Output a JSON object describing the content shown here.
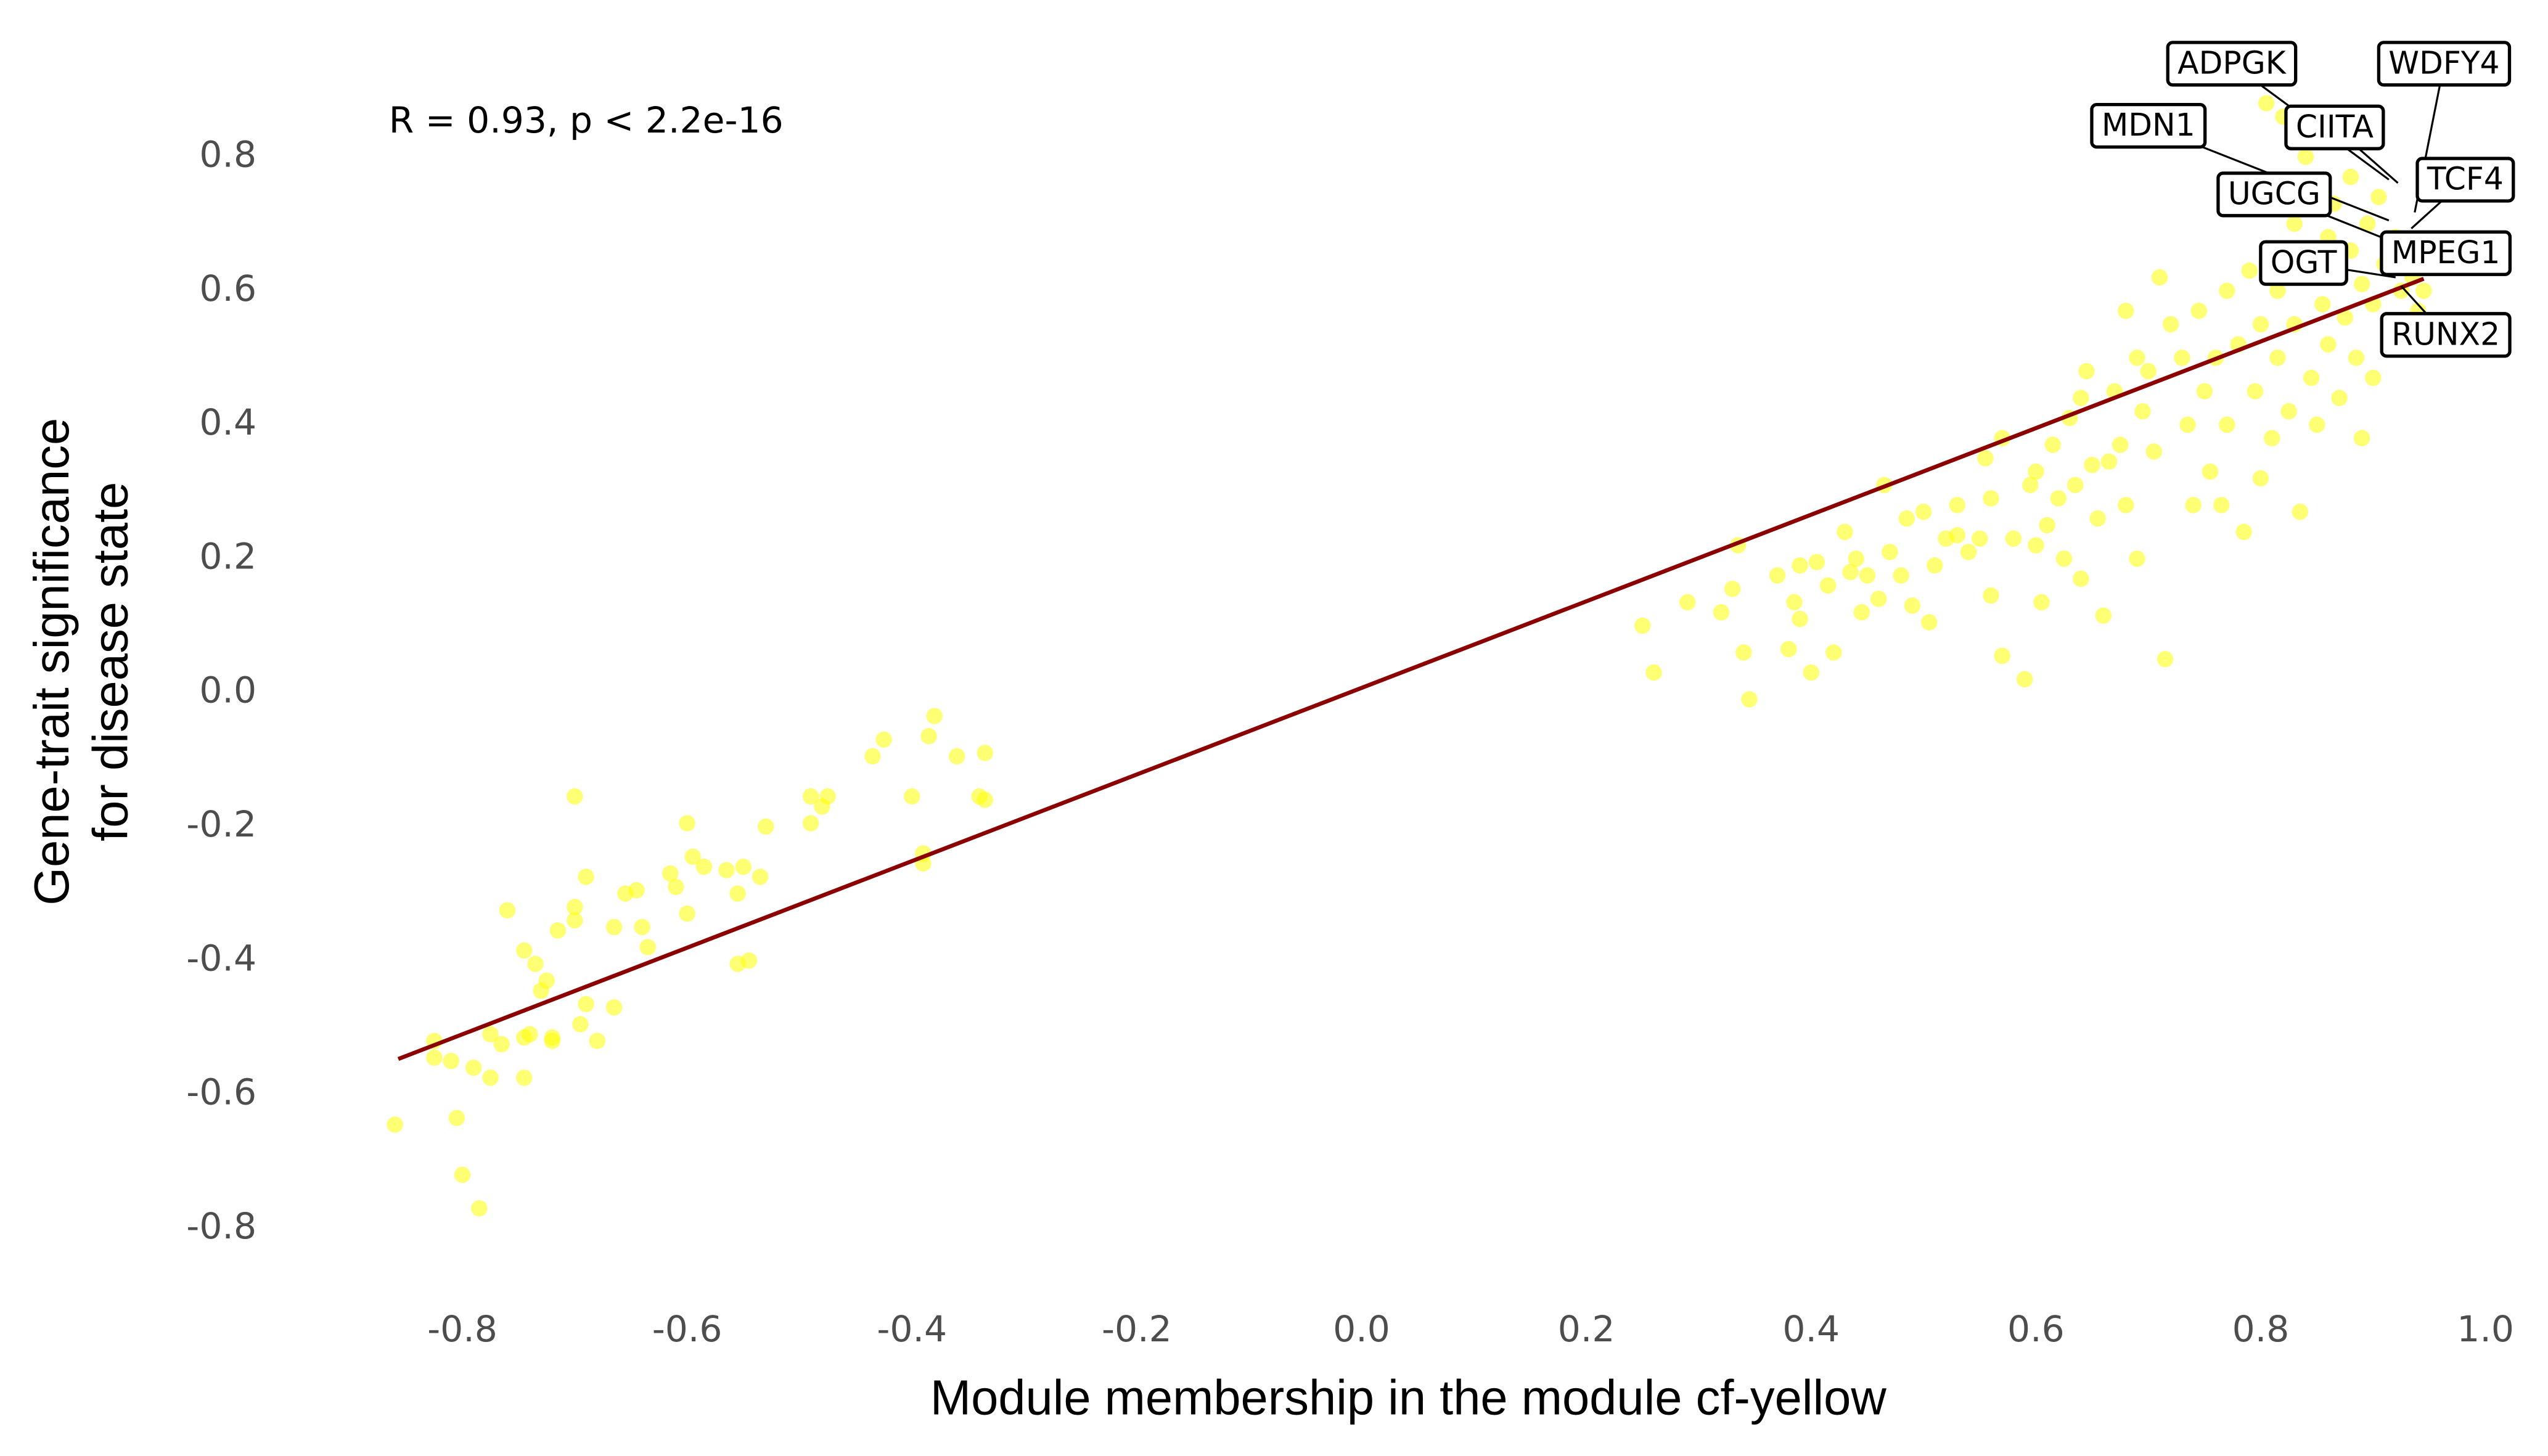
{
  "chart_data": {
    "type": "scatter",
    "xlabel": "Module membership in the module cf-yellow",
    "ylabel": [
      "Gene-trait significance",
      "for disease state"
    ],
    "annotation": "R = 0.93, p < 2.2e-16",
    "xlim": [
      -0.9,
      1.03
    ],
    "ylim": [
      -0.9,
      0.94
    ],
    "xticks": [
      -0.8,
      -0.6,
      -0.4,
      -0.2,
      {
        "value": 0,
        "label": "0.0"
      },
      0.2,
      0.4,
      0.6,
      0.8,
      {
        "value": 1,
        "label": "1.0"
      }
    ],
    "yticks": [
      -0.8,
      -0.6,
      -0.4,
      -0.2,
      {
        "value": 0,
        "label": "0.0"
      },
      0.2,
      0.4,
      0.6,
      0.8
    ],
    "grid": false,
    "color": "#ffff00",
    "x": [
      -0.86,
      -0.825,
      -0.825,
      -0.81,
      -0.805,
      -0.8,
      -0.79,
      -0.785,
      -0.775,
      -0.775,
      -0.765,
      -0.76,
      -0.745,
      -0.745,
      -0.745,
      -0.74,
      -0.735,
      -0.73,
      -0.725,
      -0.72,
      -0.72,
      -0.715,
      -0.7,
      -0.7,
      -0.7,
      -0.695,
      -0.69,
      -0.69,
      -0.68,
      -0.665,
      -0.665,
      -0.655,
      -0.645,
      -0.64,
      -0.635,
      -0.615,
      -0.61,
      -0.6,
      -0.6,
      -0.595,
      -0.585,
      -0.565,
      -0.555,
      -0.555,
      -0.55,
      -0.545,
      -0.535,
      -0.53,
      -0.49,
      -0.49,
      -0.48,
      -0.475,
      -0.435,
      -0.425,
      -0.4,
      -0.39,
      -0.39,
      -0.385,
      -0.38,
      -0.36,
      -0.34,
      -0.335,
      -0.335,
      0.25,
      0.26,
      0.29,
      0.32,
      0.33,
      0.335,
      0.34,
      0.345,
      0.37,
      0.38,
      0.385,
      0.39,
      0.39,
      0.4,
      0.405,
      0.415,
      0.42,
      0.43,
      0.435,
      0.44,
      0.445,
      0.45,
      0.46,
      0.465,
      0.47,
      0.48,
      0.485,
      0.49,
      0.5,
      0.505,
      0.51,
      0.52,
      0.53,
      0.53,
      0.54,
      0.55,
      0.555,
      0.56,
      0.56,
      0.57,
      0.57,
      0.58,
      0.59,
      0.595,
      0.6,
      0.6,
      0.605,
      0.61,
      0.615,
      0.62,
      0.625,
      0.63,
      0.635,
      0.64,
      0.64,
      0.645,
      0.65,
      0.655,
      0.66,
      0.665,
      0.67,
      0.675,
      0.68,
      0.68,
      0.69,
      0.69,
      0.695,
      0.7,
      0.705,
      0.71,
      0.715,
      0.72,
      0.73,
      0.735,
      0.74,
      0.745,
      0.75,
      0.755,
      0.76,
      0.765,
      0.77,
      0.77,
      0.78,
      0.785,
      0.79,
      0.795,
      0.8,
      0.8,
      0.805,
      0.81,
      0.815,
      0.815,
      0.82,
      0.825,
      0.83,
      0.83,
      0.835,
      0.84,
      0.84,
      0.845,
      0.85,
      0.85,
      0.855,
      0.86,
      0.86,
      0.865,
      0.87,
      0.87,
      0.875,
      0.88,
      0.88,
      0.885,
      0.89,
      0.89,
      0.895,
      0.9,
      0.9,
      0.905,
      0.91,
      0.915,
      0.92,
      0.925,
      0.93,
      0.935,
      0.94,
      0.945
    ],
    "values": [
      -0.645,
      -0.52,
      -0.545,
      -0.55,
      -0.635,
      -0.72,
      -0.56,
      -0.77,
      -0.575,
      -0.51,
      -0.525,
      -0.325,
      -0.385,
      -0.515,
      -0.575,
      -0.51,
      -0.405,
      -0.445,
      -0.43,
      -0.515,
      -0.52,
      -0.355,
      -0.155,
      -0.34,
      -0.32,
      -0.495,
      -0.465,
      -0.275,
      -0.52,
      -0.47,
      -0.35,
      -0.3,
      -0.295,
      -0.35,
      -0.38,
      -0.27,
      -0.29,
      -0.33,
      -0.195,
      -0.245,
      -0.26,
      -0.265,
      -0.3,
      -0.405,
      -0.26,
      -0.4,
      -0.275,
      -0.2,
      -0.155,
      -0.195,
      -0.17,
      -0.155,
      -0.095,
      -0.07,
      -0.155,
      -0.24,
      -0.255,
      -0.065,
      -0.035,
      -0.095,
      -0.155,
      -0.09,
      -0.16,
      0.1,
      0.03,
      0.135,
      0.12,
      0.155,
      0.22,
      0.06,
      -0.01,
      0.175,
      0.065,
      0.135,
      0.19,
      0.11,
      0.03,
      0.195,
      0.16,
      0.06,
      0.24,
      0.18,
      0.2,
      0.12,
      0.175,
      0.14,
      0.31,
      0.21,
      0.175,
      0.26,
      0.13,
      0.27,
      0.105,
      0.19,
      0.23,
      0.28,
      0.235,
      0.21,
      0.23,
      0.35,
      0.29,
      0.145,
      0.38,
      0.055,
      0.23,
      0.02,
      0.31,
      0.33,
      0.22,
      0.135,
      0.25,
      0.37,
      0.29,
      0.2,
      0.41,
      0.31,
      0.44,
      0.17,
      0.48,
      0.34,
      0.26,
      0.115,
      0.345,
      0.45,
      0.37,
      0.57,
      0.28,
      0.5,
      0.2,
      0.42,
      0.48,
      0.36,
      0.62,
      0.05,
      0.55,
      0.5,
      0.4,
      0.28,
      0.57,
      0.45,
      0.33,
      0.5,
      0.28,
      0.6,
      0.4,
      0.52,
      0.24,
      0.63,
      0.45,
      0.55,
      0.32,
      0.88,
      0.38,
      0.6,
      0.5,
      0.86,
      0.42,
      0.7,
      0.55,
      0.27,
      0.8,
      0.62,
      0.47,
      0.75,
      0.4,
      0.58,
      0.68,
      0.52,
      0.73,
      0.63,
      0.44,
      0.56,
      0.77,
      0.66,
      0.5,
      0.61,
      0.38,
      0.7,
      0.58,
      0.47,
      0.74,
      0.64,
      0.55,
      0.68,
      0.6,
      0.52,
      0.62,
      0.57,
      0.6
    ],
    "fit": {
      "color": "#8b0000",
      "x": [
        -0.857,
        0.945
      ],
      "values": [
        -0.547,
        0.618
      ]
    },
    "labels": [
      {
        "text": "ADPGK",
        "x": 0.914,
        "y": 0.766
      },
      {
        "text": "WDFY4",
        "x": 0.937,
        "y": 0.717
      },
      {
        "text": "MDN1",
        "x": 0.914,
        "y": 0.705
      },
      {
        "text": "CIITA",
        "x": 0.922,
        "y": 0.761
      },
      {
        "text": "TCF4",
        "x": 0.934,
        "y": 0.693
      },
      {
        "text": "UGCG",
        "x": 0.925,
        "y": 0.668
      },
      {
        "text": "MPEG1",
        "x": 0.914,
        "y": 0.644
      },
      {
        "text": "OGT",
        "x": 0.92,
        "y": 0.62
      },
      {
        "text": "RUNX2",
        "x": 0.925,
        "y": 0.607
      }
    ]
  }
}
